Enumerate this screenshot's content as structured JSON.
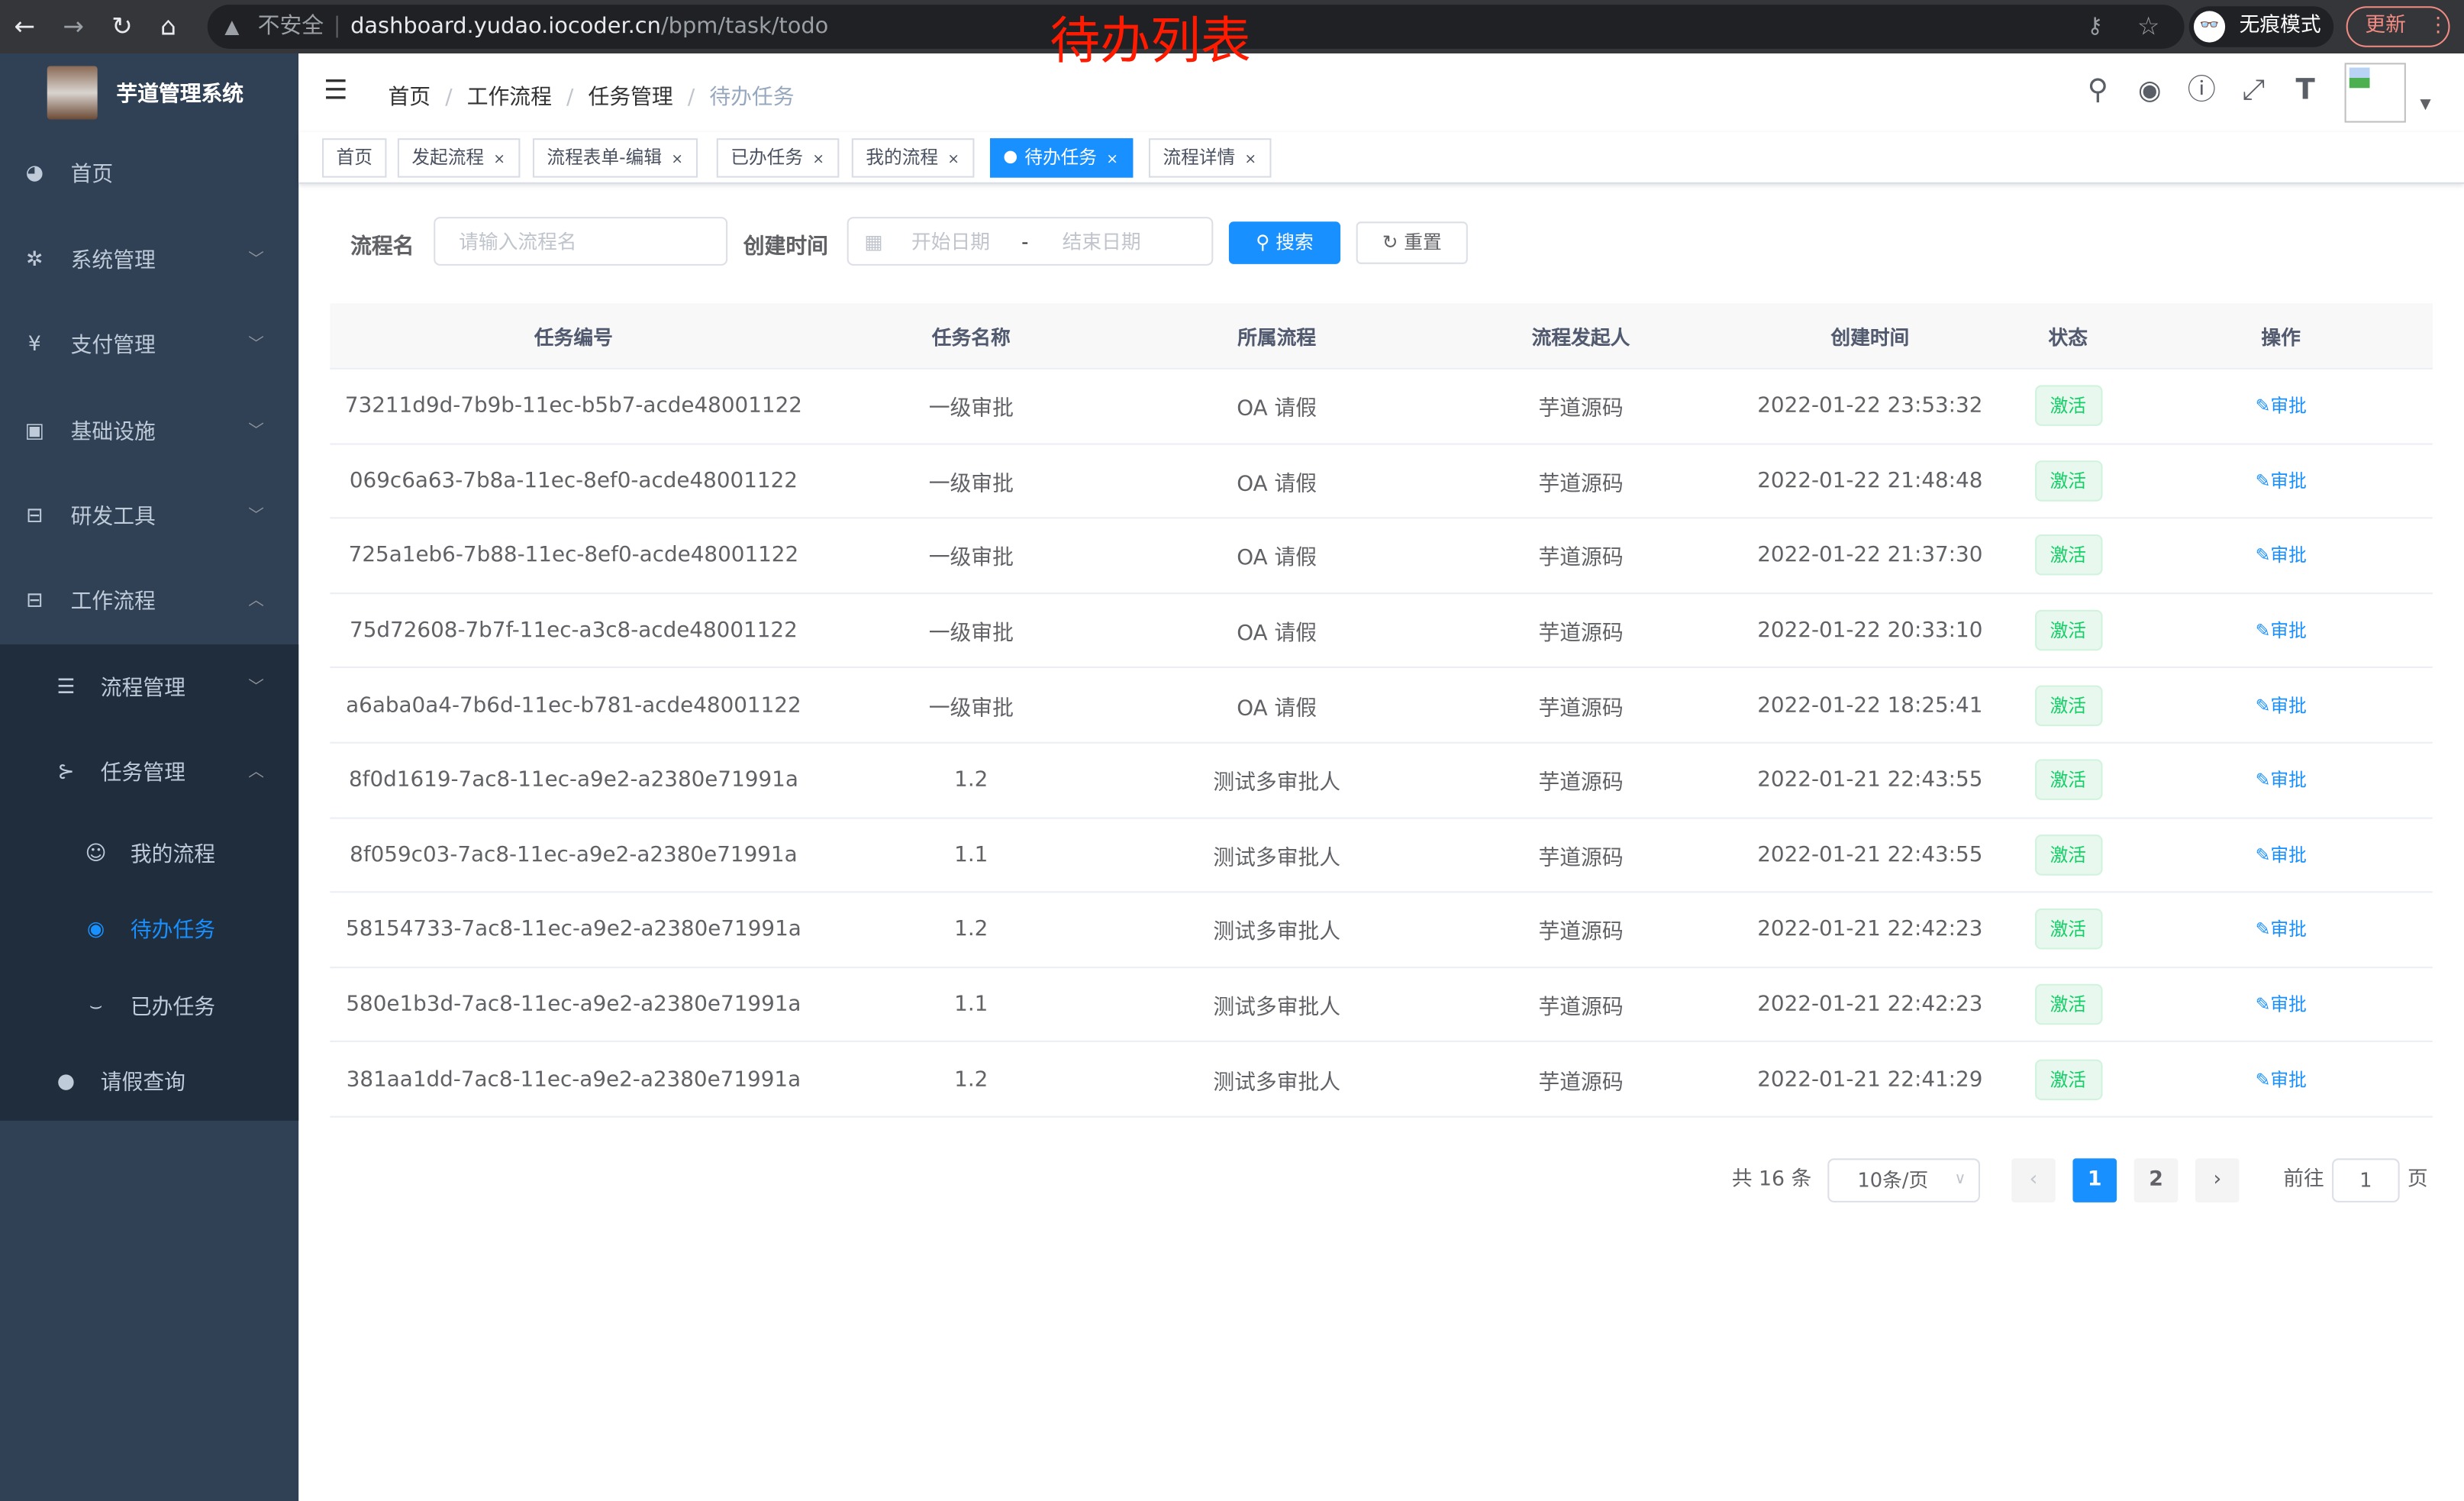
{
  "browser": {
    "security": "不安全",
    "url_host": "dashboard.yudao.iocoder.cn",
    "url_path": "/bpm/task/todo",
    "incognito": "无痕模式",
    "update": "更新"
  },
  "annotation": "待办列表",
  "sidebar": {
    "logo_text": "芋道管理系统",
    "items": [
      {
        "label": "首页",
        "icon": "dashboard-icon"
      },
      {
        "label": "系统管理",
        "icon": "gear-icon"
      },
      {
        "label": "支付管理",
        "icon": "yen-icon"
      },
      {
        "label": "基础设施",
        "icon": "monitor-icon"
      },
      {
        "label": "研发工具",
        "icon": "toolbox-icon"
      },
      {
        "label": "工作流程",
        "icon": "toolbox-icon"
      }
    ],
    "submenu": [
      {
        "label": "流程管理",
        "icon": "list-icon"
      },
      {
        "label": "任务管理",
        "icon": "tree-icon"
      },
      {
        "label": "我的流程",
        "icon": "robot-icon"
      },
      {
        "label": "待办任务",
        "icon": "eye-open-icon",
        "active": true
      },
      {
        "label": "已办任务",
        "icon": "eye-closed-icon"
      },
      {
        "label": "请假查询",
        "icon": "user-icon"
      }
    ],
    "active_color": "#1890ff"
  },
  "breadcrumb": [
    "首页",
    "工作流程",
    "任务管理",
    "待办任务"
  ],
  "tags": [
    {
      "label": "首页"
    },
    {
      "label": "发起流程"
    },
    {
      "label": "流程表单-编辑"
    },
    {
      "label": "已办任务"
    },
    {
      "label": "我的流程"
    },
    {
      "label": "待办任务",
      "active": true
    },
    {
      "label": "流程详情"
    }
  ],
  "search": {
    "name_label": "流程名",
    "name_placeholder": "请输入流程名",
    "time_label": "创建时间",
    "start_placeholder": "开始日期",
    "range_sep": "-",
    "end_placeholder": "结束日期",
    "search_btn": "搜索",
    "reset_btn": "重置"
  },
  "table": {
    "columns": [
      "任务编号",
      "任务名称",
      "所属流程",
      "流程发起人",
      "创建时间",
      "状态",
      "操作"
    ],
    "rows": [
      [
        "73211d9d-7b9b-11ec-b5b7-acde48001122",
        "一级审批",
        "OA 请假",
        "芋道源码",
        "2022-01-22 23:53:32",
        "激活",
        "审批"
      ],
      [
        "069c6a63-7b8a-11ec-8ef0-acde48001122",
        "一级审批",
        "OA 请假",
        "芋道源码",
        "2022-01-22 21:48:48",
        "激活",
        "审批"
      ],
      [
        "725a1eb6-7b88-11ec-8ef0-acde48001122",
        "一级审批",
        "OA 请假",
        "芋道源码",
        "2022-01-22 21:37:30",
        "激活",
        "审批"
      ],
      [
        "75d72608-7b7f-11ec-a3c8-acde48001122",
        "一级审批",
        "OA 请假",
        "芋道源码",
        "2022-01-22 20:33:10",
        "激活",
        "审批"
      ],
      [
        "a6aba0a4-7b6d-11ec-b781-acde48001122",
        "一级审批",
        "OA 请假",
        "芋道源码",
        "2022-01-22 18:25:41",
        "激活",
        "审批"
      ],
      [
        "8f0d1619-7ac8-11ec-a9e2-a2380e71991a",
        "1.2",
        "测试多审批人",
        "芋道源码",
        "2022-01-21 22:43:55",
        "激活",
        "审批"
      ],
      [
        "8f059c03-7ac8-11ec-a9e2-a2380e71991a",
        "1.1",
        "测试多审批人",
        "芋道源码",
        "2022-01-21 22:43:55",
        "激活",
        "审批"
      ],
      [
        "58154733-7ac8-11ec-a9e2-a2380e71991a",
        "1.2",
        "测试多审批人",
        "芋道源码",
        "2022-01-21 22:42:23",
        "激活",
        "审批"
      ],
      [
        "580e1b3d-7ac8-11ec-a9e2-a2380e71991a",
        "1.1",
        "测试多审批人",
        "芋道源码",
        "2022-01-21 22:42:23",
        "激活",
        "审批"
      ],
      [
        "381aa1dd-7ac8-11ec-a9e2-a2380e71991a",
        "1.2",
        "测试多审批人",
        "芋道源码",
        "2022-01-21 22:41:29",
        "激活",
        "审批"
      ]
    ]
  },
  "pagination": {
    "total": "共 16 条",
    "page_size": "10条/页",
    "pages": [
      "1",
      "2"
    ],
    "current": "1",
    "goto_label": "前往",
    "goto_value": "1",
    "goto_suffix": "页"
  }
}
